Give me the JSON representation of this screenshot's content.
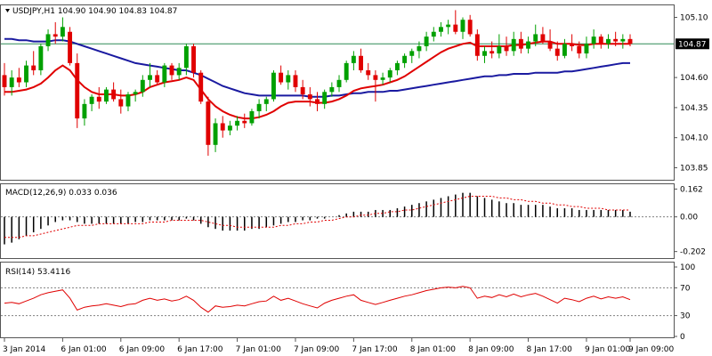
{
  "chart_data": [
    {
      "type": "candlestick",
      "title": "USDJPY,H1  104.90 104.90 104.83 104.87",
      "symbol": "USDJPY",
      "timeframe": "H1",
      "ohlc_label": "104.90 104.90 104.83 104.87",
      "last_price": "104.87",
      "ylim": [
        103.75,
        105.2
      ],
      "yticks": [
        "105.10",
        "104.60",
        "104.35",
        "104.10",
        "103.85"
      ],
      "ytick_values": [
        105.1,
        104.6,
        104.35,
        104.1,
        103.85
      ],
      "xlabels": [
        "3 Jan 2014",
        "6 Jan 01:00",
        "6 Jan 09:00",
        "6 Jan 17:00",
        "7 Jan 01:00",
        "7 Jan 09:00",
        "7 Jan 17:00",
        "8 Jan 01:00",
        "8 Jan 09:00",
        "8 Jan 17:00",
        "9 Jan 01:00",
        "9 Jan 09:00"
      ],
      "colors": {
        "bull": "#00a000",
        "bear": "#e00000",
        "ma_fast": "#e00000",
        "ma_slow": "#1a1aa0",
        "price_line": "#2e8b57"
      },
      "candles": [
        [
          104.62,
          104.72,
          104.45,
          104.52
        ],
        [
          104.52,
          104.66,
          104.45,
          104.6
        ],
        [
          104.6,
          104.68,
          104.52,
          104.56
        ],
        [
          104.56,
          104.74,
          104.52,
          104.7
        ],
        [
          104.7,
          104.82,
          104.62,
          104.66
        ],
        [
          104.66,
          104.88,
          104.62,
          104.86
        ],
        [
          104.86,
          105.0,
          104.82,
          104.96
        ],
        [
          104.96,
          105.06,
          104.88,
          104.94
        ],
        [
          104.94,
          105.1,
          104.9,
          105.02
        ],
        [
          104.98,
          105.02,
          104.7,
          104.72
        ],
        [
          104.72,
          104.8,
          104.18,
          104.26
        ],
        [
          104.26,
          104.42,
          104.2,
          104.38
        ],
        [
          104.38,
          104.46,
          104.32,
          104.44
        ],
        [
          104.44,
          104.52,
          104.34,
          104.4
        ],
        [
          104.4,
          104.52,
          104.38,
          104.5
        ],
        [
          104.5,
          104.56,
          104.4,
          104.42
        ],
        [
          104.42,
          104.5,
          104.3,
          104.36
        ],
        [
          104.36,
          104.48,
          104.32,
          104.46
        ],
        [
          104.46,
          104.5,
          104.4,
          104.48
        ],
        [
          104.48,
          104.62,
          104.44,
          104.58
        ],
        [
          104.58,
          104.72,
          104.52,
          104.62
        ],
        [
          104.62,
          104.66,
          104.54,
          104.56
        ],
        [
          104.56,
          104.72,
          104.52,
          104.7
        ],
        [
          104.7,
          104.72,
          104.58,
          104.62
        ],
        [
          104.62,
          104.72,
          104.58,
          104.68
        ],
        [
          104.68,
          104.88,
          104.62,
          104.86
        ],
        [
          104.86,
          104.88,
          104.6,
          104.64
        ],
        [
          104.64,
          104.66,
          104.38,
          104.4
        ],
        [
          104.4,
          104.44,
          103.95,
          104.04
        ],
        [
          104.04,
          104.26,
          103.98,
          104.22
        ],
        [
          104.22,
          104.28,
          104.1,
          104.16
        ],
        [
          104.16,
          104.24,
          104.12,
          104.2
        ],
        [
          104.2,
          104.28,
          104.16,
          104.24
        ],
        [
          104.24,
          104.3,
          104.18,
          104.22
        ],
        [
          104.22,
          104.34,
          104.2,
          104.32
        ],
        [
          104.32,
          104.42,
          104.26,
          104.38
        ],
        [
          104.38,
          104.44,
          104.32,
          104.42
        ],
        [
          104.42,
          104.66,
          104.4,
          104.64
        ],
        [
          104.64,
          104.7,
          104.54,
          104.56
        ],
        [
          104.56,
          104.66,
          104.5,
          104.62
        ],
        [
          104.62,
          104.66,
          104.48,
          104.52
        ],
        [
          104.52,
          104.58,
          104.42,
          104.46
        ],
        [
          104.46,
          104.52,
          104.36,
          104.42
        ],
        [
          104.42,
          104.48,
          104.32,
          104.38
        ],
        [
          104.38,
          104.5,
          104.34,
          104.48
        ],
        [
          104.48,
          104.56,
          104.44,
          104.52
        ],
        [
          104.52,
          104.62,
          104.48,
          104.58
        ],
        [
          104.58,
          104.74,
          104.56,
          104.72
        ],
        [
          104.72,
          104.82,
          104.66,
          104.78
        ],
        [
          104.78,
          104.84,
          104.64,
          104.66
        ],
        [
          104.66,
          104.72,
          104.58,
          104.62
        ],
        [
          104.62,
          104.66,
          104.4,
          104.58
        ],
        [
          104.58,
          104.64,
          104.54,
          104.6
        ],
        [
          104.6,
          104.68,
          104.56,
          104.66
        ],
        [
          104.66,
          104.74,
          104.62,
          104.72
        ],
        [
          104.72,
          104.8,
          104.68,
          104.78
        ],
        [
          104.78,
          104.84,
          104.72,
          104.82
        ],
        [
          104.82,
          104.9,
          104.76,
          104.86
        ],
        [
          104.86,
          104.98,
          104.82,
          104.94
        ],
        [
          104.94,
          105.02,
          104.9,
          104.98
        ],
        [
          104.98,
          105.06,
          104.94,
          105.02
        ],
        [
          105.02,
          105.08,
          104.96,
          105.04
        ],
        [
          105.04,
          105.16,
          104.96,
          104.98
        ],
        [
          104.98,
          105.1,
          104.92,
          105.08
        ],
        [
          105.08,
          105.12,
          104.94,
          104.96
        ],
        [
          104.96,
          105.0,
          104.74,
          104.78
        ],
        [
          104.78,
          104.86,
          104.72,
          104.82
        ],
        [
          104.82,
          104.9,
          104.76,
          104.8
        ],
        [
          104.8,
          104.96,
          104.76,
          104.86
        ],
        [
          104.86,
          104.94,
          104.78,
          104.82
        ],
        [
          104.82,
          104.98,
          104.78,
          104.92
        ],
        [
          104.92,
          104.98,
          104.8,
          104.84
        ],
        [
          104.84,
          104.94,
          104.8,
          104.9
        ],
        [
          104.9,
          105.04,
          104.86,
          104.96
        ],
        [
          104.96,
          105.02,
          104.88,
          104.9
        ],
        [
          104.9,
          105.0,
          104.82,
          104.84
        ],
        [
          104.84,
          104.9,
          104.74,
          104.78
        ],
        [
          104.78,
          104.92,
          104.76,
          104.88
        ],
        [
          104.88,
          104.96,
          104.82,
          104.86
        ],
        [
          104.86,
          104.9,
          104.76,
          104.8
        ],
        [
          104.8,
          104.94,
          104.76,
          104.88
        ],
        [
          104.88,
          105.0,
          104.84,
          104.94
        ],
        [
          104.94,
          104.96,
          104.84,
          104.88
        ],
        [
          104.88,
          104.96,
          104.84,
          104.92
        ],
        [
          104.92,
          104.98,
          104.86,
          104.9
        ],
        [
          104.9,
          104.96,
          104.84,
          104.92
        ],
        [
          104.92,
          104.96,
          104.86,
          104.88
        ]
      ],
      "ma_fast": [
        104.48,
        104.48,
        104.49,
        104.5,
        104.52,
        104.55,
        104.6,
        104.66,
        104.7,
        104.66,
        104.58,
        104.52,
        104.48,
        104.46,
        104.46,
        104.46,
        104.45,
        104.45,
        104.46,
        104.48,
        104.52,
        104.54,
        104.56,
        104.57,
        104.58,
        104.6,
        104.58,
        104.5,
        104.42,
        104.36,
        104.32,
        104.29,
        104.27,
        104.26,
        104.26,
        104.27,
        104.29,
        104.32,
        104.36,
        104.39,
        104.4,
        104.4,
        104.4,
        104.39,
        104.39,
        104.4,
        104.42,
        104.45,
        104.49,
        104.51,
        104.52,
        104.53,
        104.54,
        104.56,
        104.58,
        104.61,
        104.65,
        104.69,
        104.73,
        104.77,
        104.81,
        104.84,
        104.86,
        104.88,
        104.89,
        104.86,
        104.86,
        104.86,
        104.86,
        104.86,
        104.87,
        104.87,
        104.88,
        104.89,
        104.9,
        104.9,
        104.88,
        104.88,
        104.88,
        104.87,
        104.87,
        104.88,
        104.88,
        104.88,
        104.88,
        104.88,
        104.88
      ],
      "ma_slow": [
        104.92,
        104.92,
        104.91,
        104.91,
        104.9,
        104.9,
        104.9,
        104.91,
        104.91,
        104.9,
        104.88,
        104.86,
        104.84,
        104.82,
        104.8,
        104.78,
        104.76,
        104.74,
        104.72,
        104.71,
        104.7,
        104.69,
        104.68,
        104.67,
        104.66,
        104.66,
        104.64,
        104.62,
        104.59,
        104.56,
        104.53,
        104.51,
        104.49,
        104.47,
        104.46,
        104.45,
        104.45,
        104.45,
        104.45,
        104.45,
        104.45,
        104.45,
        104.44,
        104.44,
        104.44,
        104.45,
        104.45,
        104.46,
        104.47,
        104.47,
        104.48,
        104.48,
        104.48,
        104.49,
        104.49,
        104.5,
        104.51,
        104.52,
        104.53,
        104.54,
        104.55,
        104.56,
        104.57,
        104.58,
        104.59,
        104.6,
        104.61,
        104.61,
        104.62,
        104.62,
        104.63,
        104.63,
        104.63,
        104.64,
        104.64,
        104.64,
        104.64,
        104.65,
        104.65,
        104.66,
        104.67,
        104.68,
        104.69,
        104.7,
        104.71,
        104.72,
        104.72
      ]
    },
    {
      "type": "bar+line",
      "title": "MACD(12,26,9) 0.033 0.036",
      "ylim": [
        -0.24,
        0.19
      ],
      "yticks": [
        "0.162",
        "0.00",
        "-0.202"
      ],
      "ytick_values": [
        0.162,
        0.0,
        -0.202
      ],
      "colors": {
        "hist": "#000000",
        "signal": "#e00000",
        "zero": "#808080"
      },
      "histogram": [
        -0.16,
        -0.15,
        -0.13,
        -0.11,
        -0.09,
        -0.07,
        -0.05,
        -0.03,
        -0.02,
        -0.02,
        -0.03,
        -0.04,
        -0.04,
        -0.04,
        -0.04,
        -0.04,
        -0.04,
        -0.04,
        -0.03,
        -0.03,
        -0.02,
        -0.02,
        -0.02,
        -0.02,
        -0.02,
        -0.01,
        -0.02,
        -0.04,
        -0.06,
        -0.07,
        -0.08,
        -0.08,
        -0.08,
        -0.08,
        -0.07,
        -0.07,
        -0.06,
        -0.05,
        -0.04,
        -0.03,
        -0.03,
        -0.02,
        -0.02,
        -0.01,
        -0.01,
        0.0,
        0.01,
        0.02,
        0.03,
        0.03,
        0.03,
        0.04,
        0.04,
        0.04,
        0.05,
        0.06,
        0.07,
        0.08,
        0.09,
        0.1,
        0.11,
        0.12,
        0.13,
        0.14,
        0.14,
        0.12,
        0.11,
        0.1,
        0.09,
        0.08,
        0.08,
        0.07,
        0.07,
        0.07,
        0.07,
        0.06,
        0.05,
        0.05,
        0.05,
        0.04,
        0.04,
        0.04,
        0.04,
        0.04,
        0.04,
        0.04,
        0.03
      ],
      "signal": [
        -0.12,
        -0.12,
        -0.12,
        -0.11,
        -0.11,
        -0.1,
        -0.09,
        -0.08,
        -0.07,
        -0.06,
        -0.05,
        -0.05,
        -0.05,
        -0.04,
        -0.04,
        -0.04,
        -0.04,
        -0.04,
        -0.04,
        -0.04,
        -0.03,
        -0.03,
        -0.03,
        -0.02,
        -0.02,
        -0.02,
        -0.02,
        -0.02,
        -0.03,
        -0.04,
        -0.05,
        -0.05,
        -0.06,
        -0.06,
        -0.06,
        -0.06,
        -0.06,
        -0.06,
        -0.05,
        -0.05,
        -0.04,
        -0.04,
        -0.03,
        -0.03,
        -0.02,
        -0.02,
        -0.01,
        0.0,
        0.0,
        0.01,
        0.01,
        0.02,
        0.02,
        0.03,
        0.03,
        0.04,
        0.04,
        0.05,
        0.06,
        0.07,
        0.08,
        0.09,
        0.1,
        0.11,
        0.12,
        0.12,
        0.12,
        0.12,
        0.11,
        0.11,
        0.1,
        0.1,
        0.09,
        0.09,
        0.08,
        0.08,
        0.07,
        0.07,
        0.06,
        0.06,
        0.05,
        0.05,
        0.05,
        0.04,
        0.04,
        0.04,
        0.04
      ]
    },
    {
      "type": "line",
      "title": "RSI(14) 53.4116",
      "ylim": [
        0,
        100
      ],
      "yticks": [
        "100",
        "70",
        "30",
        "0"
      ],
      "ytick_values": [
        100,
        70,
        30,
        0
      ],
      "levels": [
        70,
        30
      ],
      "colors": {
        "rsi": "#e00000",
        "level": "#808080"
      },
      "values": [
        48,
        49,
        47,
        51,
        55,
        60,
        63,
        65,
        67,
        55,
        38,
        42,
        44,
        45,
        47,
        45,
        43,
        46,
        47,
        52,
        55,
        52,
        54,
        51,
        53,
        58,
        52,
        42,
        35,
        44,
        42,
        43,
        45,
        44,
        47,
        50,
        51,
        58,
        52,
        55,
        51,
        47,
        44,
        41,
        48,
        52,
        55,
        58,
        60,
        52,
        49,
        46,
        49,
        52,
        55,
        58,
        60,
        63,
        66,
        68,
        70,
        71,
        70,
        72,
        70,
        55,
        58,
        56,
        60,
        57,
        61,
        57,
        60,
        62,
        58,
        53,
        48,
        55,
        53,
        50,
        55,
        58,
        54,
        57,
        55,
        57,
        53
      ]
    }
  ]
}
